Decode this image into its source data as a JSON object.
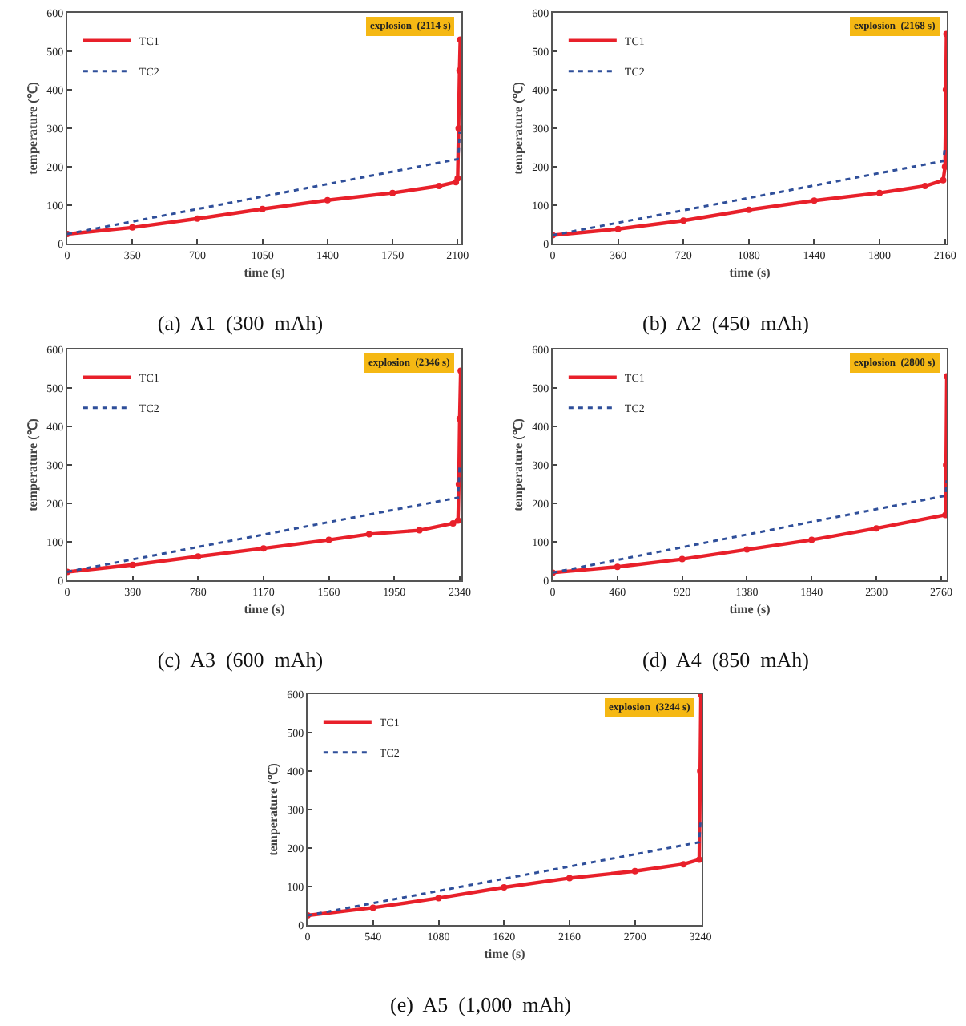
{
  "chart_data": [
    {
      "type": "line",
      "title": "(a)  A1  (300  mAh)",
      "xlabel": "time (s)",
      "ylabel": "temperature (℃)",
      "annotations": [
        "explosion  (2114 s)"
      ],
      "legend": "top left",
      "grid": false,
      "xlim": [
        0,
        2120
      ],
      "xticks": [
        0,
        350,
        700,
        1050,
        1400,
        1750,
        2100
      ],
      "ylim": [
        0,
        600
      ],
      "yticks": [
        0,
        100,
        200,
        300,
        400,
        500,
        600
      ],
      "series": [
        {
          "name": "TC1",
          "color": "#e8202a",
          "marker": "circle",
          "line_style": "solid",
          "x": [
            0,
            350,
            700,
            1050,
            1400,
            1750,
            2000,
            2090,
            2100,
            2105,
            2110,
            2114
          ],
          "values": [
            25,
            42,
            65,
            90,
            113,
            132,
            150,
            160,
            170,
            300,
            450,
            530
          ]
        },
        {
          "name": "TC2",
          "color": "#2f4f9a",
          "marker": "none",
          "line_style": "dotted",
          "x": [
            0,
            2100,
            2105,
            2110
          ],
          "values": [
            25,
            220,
            230,
            290
          ]
        }
      ]
    },
    {
      "type": "line",
      "title": "(b)  A2  (450  mAh)",
      "xlabel": "time (s)",
      "ylabel": "temperature (℃)",
      "annotations": [
        "explosion  (2168 s)"
      ],
      "legend": "top left",
      "grid": false,
      "xlim": [
        0,
        2170
      ],
      "xticks": [
        0,
        360,
        720,
        1080,
        1440,
        1800,
        2160
      ],
      "ylim": [
        0,
        600
      ],
      "yticks": [
        0,
        100,
        200,
        300,
        400,
        500,
        600
      ],
      "series": [
        {
          "name": "TC1",
          "color": "#e8202a",
          "marker": "circle",
          "line_style": "solid",
          "x": [
            0,
            360,
            720,
            1080,
            1440,
            1800,
            2050,
            2150,
            2160,
            2165,
            2168
          ],
          "values": [
            22,
            38,
            60,
            88,
            112,
            132,
            150,
            165,
            200,
            400,
            545
          ]
        },
        {
          "name": "TC2",
          "color": "#2f4f9a",
          "marker": "none",
          "line_style": "dotted",
          "x": [
            0,
            2150,
            2160
          ],
          "values": [
            22,
            215,
            250
          ]
        }
      ]
    },
    {
      "type": "line",
      "title": "(c)  A3  (600  mAh)",
      "xlabel": "time (s)",
      "ylabel": "temperature (℃)",
      "annotations": [
        "explosion  (2346 s)"
      ],
      "legend": "top left",
      "grid": false,
      "xlim": [
        0,
        2350
      ],
      "xticks": [
        0,
        390,
        780,
        1170,
        1560,
        1950,
        2340
      ],
      "ylim": [
        0,
        600
      ],
      "yticks": [
        0,
        100,
        200,
        300,
        400,
        500,
        600
      ],
      "series": [
        {
          "name": "TC1",
          "color": "#e8202a",
          "marker": "circle",
          "line_style": "solid",
          "x": [
            0,
            390,
            780,
            1170,
            1560,
            1800,
            2100,
            2300,
            2330,
            2335,
            2340,
            2346
          ],
          "values": [
            22,
            40,
            62,
            83,
            105,
            120,
            130,
            148,
            155,
            250,
            420,
            545
          ]
        },
        {
          "name": "TC2",
          "color": "#2f4f9a",
          "marker": "none",
          "line_style": "dotted",
          "x": [
            0,
            2330,
            2340
          ],
          "values": [
            22,
            215,
            300
          ]
        }
      ]
    },
    {
      "type": "line",
      "title": "(d)  A4  (850  mAh)",
      "xlabel": "time (s)",
      "ylabel": "temperature (℃)",
      "annotations": [
        "explosion  (2800 s)"
      ],
      "legend": "top left",
      "grid": false,
      "xlim": [
        0,
        2800
      ],
      "xticks": [
        0,
        460,
        920,
        1380,
        1840,
        2300,
        2760
      ],
      "ylim": [
        0,
        600
      ],
      "yticks": [
        0,
        100,
        200,
        300,
        400,
        500,
        600
      ],
      "series": [
        {
          "name": "TC1",
          "color": "#e8202a",
          "marker": "circle",
          "line_style": "solid",
          "x": [
            0,
            460,
            920,
            1380,
            1840,
            2300,
            2790,
            2795,
            2800
          ],
          "values": [
            20,
            35,
            55,
            80,
            105,
            135,
            170,
            300,
            530
          ]
        },
        {
          "name": "TC2",
          "color": "#2f4f9a",
          "marker": "none",
          "line_style": "dotted",
          "x": [
            0,
            2790,
            2800
          ],
          "values": [
            20,
            220,
            260
          ]
        }
      ]
    },
    {
      "type": "line",
      "title": "(e)  A5  (1,000  mAh)",
      "xlabel": "time (s)",
      "ylabel": "temperature (℃)",
      "annotations": [
        "explosion  (3244 s)"
      ],
      "legend": "top left",
      "grid": false,
      "xlim": [
        0,
        3250
      ],
      "xticks": [
        0,
        540,
        1080,
        1620,
        2160,
        2700,
        3240
      ],
      "ylim": [
        0,
        600
      ],
      "yticks": [
        0,
        100,
        200,
        300,
        400,
        500,
        600
      ],
      "series": [
        {
          "name": "TC1",
          "color": "#e8202a",
          "marker": "circle",
          "line_style": "solid",
          "x": [
            0,
            540,
            1080,
            1620,
            2160,
            2700,
            3100,
            3230,
            3238,
            3244
          ],
          "values": [
            25,
            45,
            70,
            98,
            122,
            140,
            158,
            170,
            400,
            600
          ]
        },
        {
          "name": "TC2",
          "color": "#2f4f9a",
          "marker": "none",
          "line_style": "dotted",
          "x": [
            0,
            3230,
            3240
          ],
          "values": [
            25,
            215,
            270
          ]
        }
      ]
    }
  ]
}
